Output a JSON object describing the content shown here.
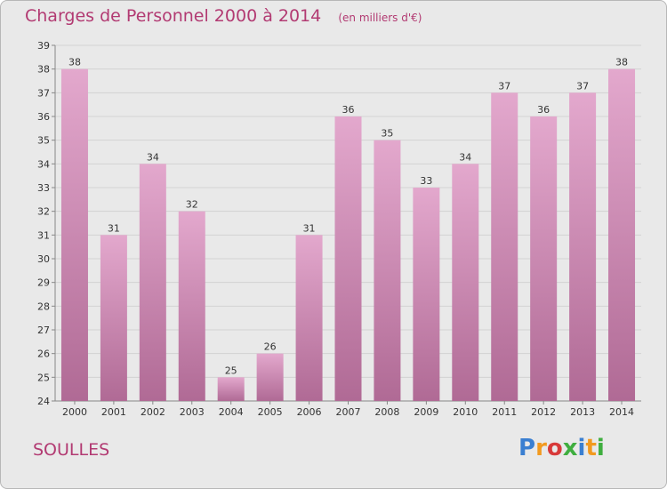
{
  "title": "Charges de Personnel 2000 à 2014",
  "unit_note": "(en milliers d'€)",
  "commune": "SOULLES",
  "logo": {
    "text": "Proxiti",
    "letters": [
      "P",
      "r",
      "o",
      "x",
      "i",
      "t",
      "i"
    ],
    "colors": [
      "#3a7fd1",
      "#f29a1f",
      "#d83a3a",
      "#3fae3f",
      "#3a7fd1",
      "#f29a1f",
      "#3fae3f"
    ]
  },
  "colors": {
    "bar_top": "#e3a8cd",
    "bar_bottom": "#b06a95",
    "text_accent": "#b23a72"
  },
  "chart_data": {
    "type": "bar",
    "categories": [
      "2000",
      "2001",
      "2002",
      "2003",
      "2004",
      "2005",
      "2006",
      "2007",
      "2008",
      "2009",
      "2010",
      "2011",
      "2012",
      "2013",
      "2014"
    ],
    "values": [
      38,
      31,
      34,
      32,
      25,
      26,
      31,
      36,
      35,
      33,
      34,
      37,
      36,
      37,
      38
    ],
    "ylim": [
      24,
      39
    ],
    "yticks": [
      24,
      25,
      26,
      27,
      28,
      29,
      30,
      31,
      32,
      33,
      34,
      35,
      36,
      37,
      38,
      39
    ],
    "grid": true,
    "data_labels": true,
    "xlabel": "",
    "ylabel": ""
  }
}
